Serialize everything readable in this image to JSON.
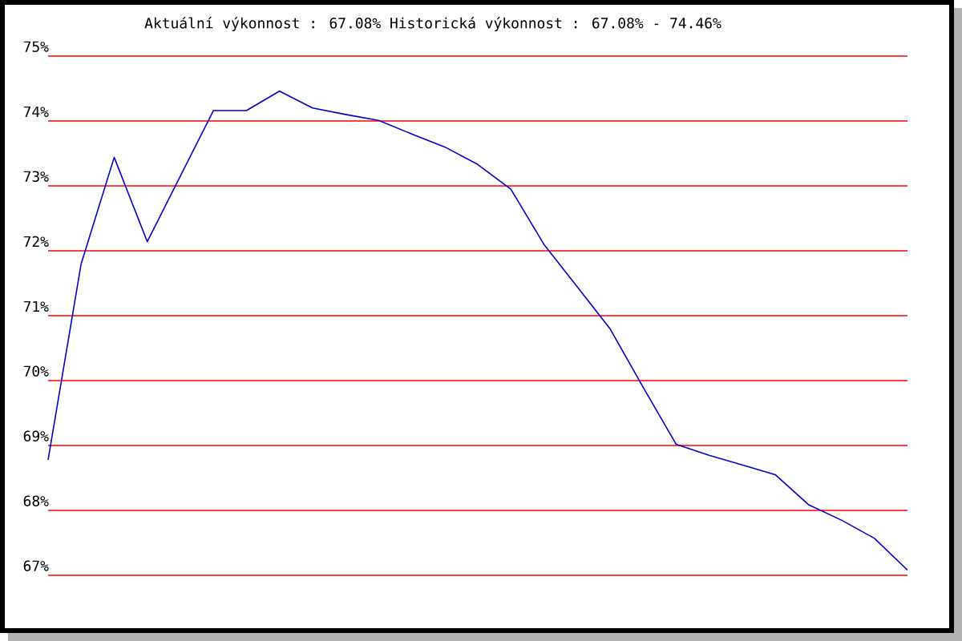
{
  "chart_data": {
    "type": "line",
    "title": "Aktuální výkonnost : 67.08%  Historická výkonnost : 67.08% - 74.46%",
    "categories": [
      null,
      null,
      null,
      null,
      null,
      null,
      null,
      null,
      null,
      null,
      null,
      null,
      null,
      null,
      null,
      null,
      null,
      null,
      null,
      null,
      null,
      null,
      null,
      null,
      null,
      null,
      null
    ],
    "series": [
      {
        "color": "#0000cc",
        "values": [
          68.78,
          71.8,
          73.44,
          72.14,
          73.15,
          74.16,
          74.16,
          74.46,
          74.2,
          74.1,
          74.01,
          73.8,
          73.6,
          73.33,
          72.95,
          72.1,
          71.45,
          70.8,
          69.9,
          69.02,
          68.85,
          68.7,
          68.55,
          68.09,
          67.85,
          67.57,
          67.08
        ]
      }
    ],
    "ylim": [
      67,
      75
    ],
    "yticks": [
      {
        "value": 67,
        "label": "67%"
      },
      {
        "value": 68,
        "label": "68%"
      },
      {
        "value": 69,
        "label": "69%"
      },
      {
        "value": 70,
        "label": "70%"
      },
      {
        "value": 71,
        "label": "71%"
      },
      {
        "value": 72,
        "label": "72%"
      },
      {
        "value": 73,
        "label": "73%"
      },
      {
        "value": 74,
        "label": "74%"
      },
      {
        "value": 75,
        "label": "75%"
      }
    ],
    "grid": "y",
    "marker": "none",
    "line_style": "solid"
  }
}
